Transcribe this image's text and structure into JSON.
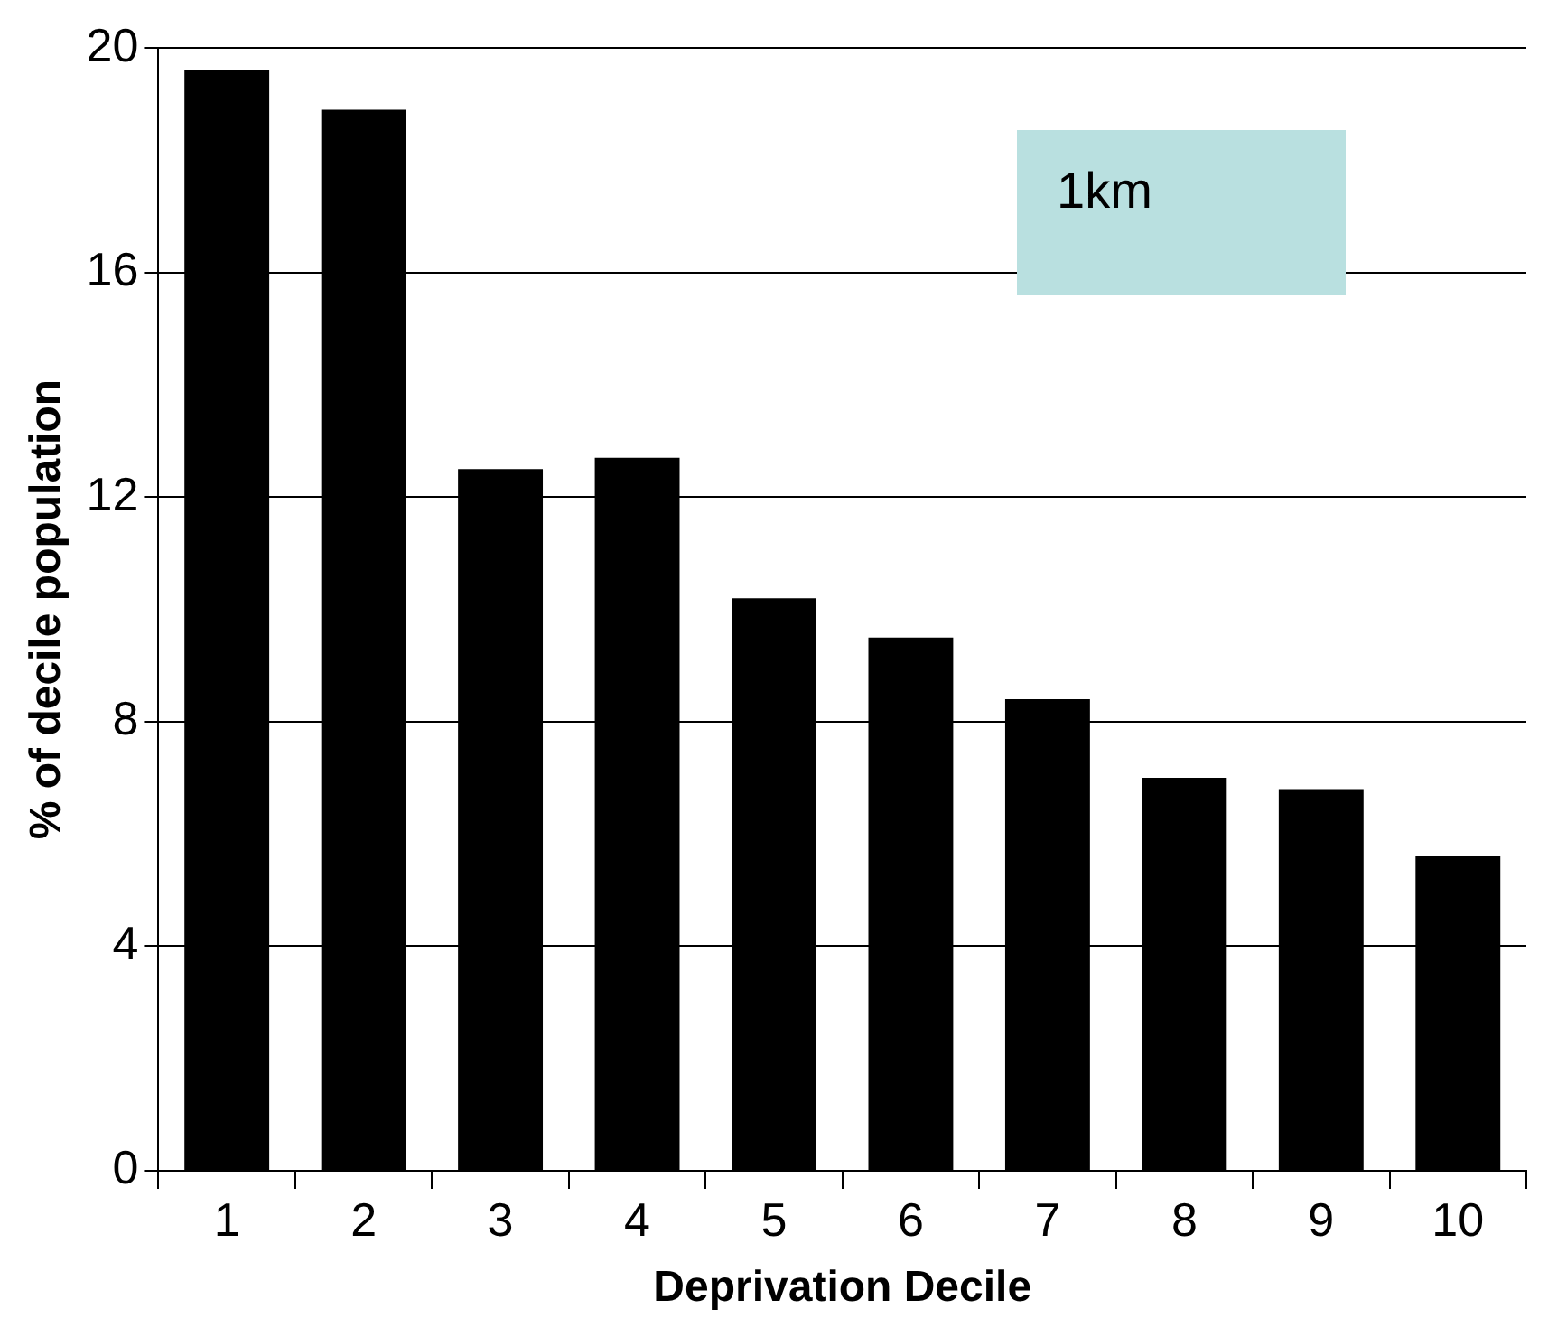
{
  "chart_data": {
    "type": "bar",
    "xlabel": "Deprivation Decile",
    "ylabel": "% of decile population",
    "categories": [
      "1",
      "2",
      "3",
      "4",
      "5",
      "6",
      "7",
      "8",
      "9",
      "10"
    ],
    "values": [
      19.6,
      18.9,
      12.5,
      12.7,
      10.2,
      9.5,
      8.4,
      7.0,
      6.8,
      5.6
    ],
    "color": "#000000",
    "ylim": [
      0,
      20
    ],
    "yticks": [
      0,
      4,
      8,
      12,
      16,
      20
    ],
    "grid": "y",
    "legend": false,
    "annotations": [
      "1km"
    ]
  }
}
